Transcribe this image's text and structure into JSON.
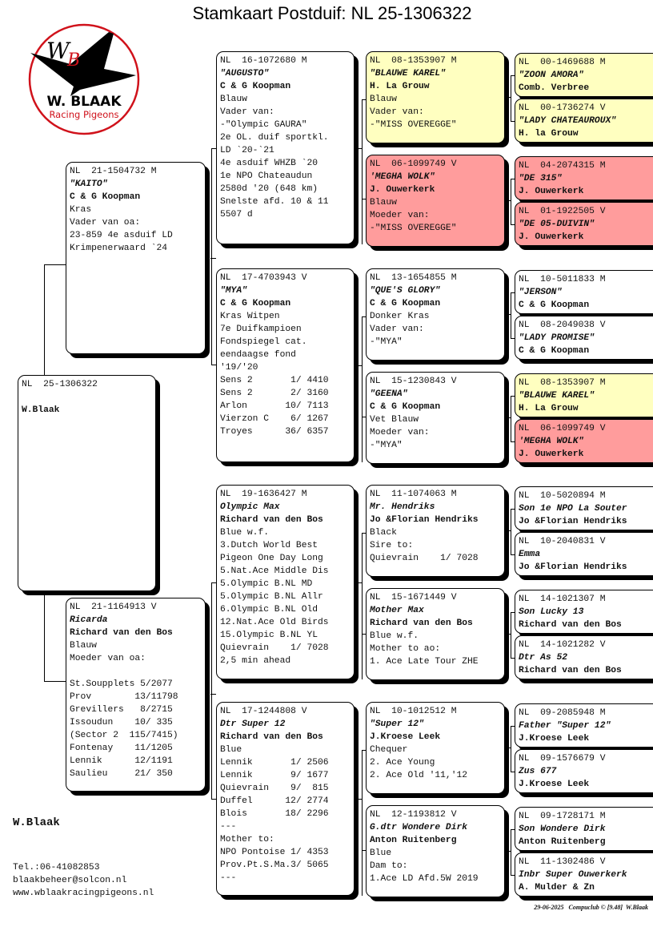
{
  "title": "Stamkaart Postduif: NL  25-1306322",
  "logo": {
    "initials": "WB",
    "name": "W. BLAAK",
    "tagline": "Racing Pigeons"
  },
  "colors": {
    "yellow": "#ffffc0",
    "red": "#ff9c9c"
  },
  "owner": "W.Blaak",
  "contact": {
    "phone": "Tel.:06-41082853",
    "email": "blaakbeheer@solcon.nl",
    "website": "www.wblaakracingpigeons.nl"
  },
  "footer": "29-06-2025   Compuclub © [9.48]  W.Blaak",
  "pigeons": {
    "s": {
      "ring": "NL  25-1306322",
      "name": "",
      "breeder": "W.Blaak",
      "lines": []
    },
    "v": {
      "ring": "NL  21-1504732 M",
      "name": "\"KAITO\"",
      "breeder": "C & G Koopman",
      "lines": [
        "Kras",
        "Vader van oa:",
        "23-859 4e asduif LD",
        "Krimpenerwaard `24"
      ]
    },
    "m": {
      "ring": "NL  21-1164913 V",
      "name": "Ricarda",
      "breeder": "Richard van den Bos",
      "lines": [
        "Blauw",
        "Moeder van oa:",
        "",
        "St.Soupplets 5/2077",
        "Prov        13/11798",
        "Grevillers   8/2715",
        "Issoudun    10/ 335",
        "(Sector 2  115/7415)",
        "Fontenay    11/1205",
        "Lennik      12/1191",
        "Saulieu     21/ 350"
      ]
    },
    "vv": {
      "ring": "NL  16-1072680 M",
      "name": "\"AUGUSTO\"",
      "breeder": "C & G Koopman",
      "lines": [
        "Blauw",
        "Vader van:",
        "-\"Olympic GAURA\"",
        "2e OL. duif sportkl.",
        "LD `20-`21",
        "4e asduif WHZB `20",
        "1e NPO Chateaudun",
        "2580d '20 (648 km)",
        "Snelste afd. 10 & 11",
        "5507 d"
      ]
    },
    "vm": {
      "ring": "NL  17-4703943 V",
      "name": "\"MYA\"",
      "breeder": "C & G Koopman",
      "lines": [
        "Kras Witpen",
        "7e Duifkampioen",
        "Fondspiegel cat.",
        "eendaagse fond",
        "'19/'20",
        "Sens 2       1/ 4410",
        "Sens 2       2/ 3160",
        "Arlon       10/ 7113",
        "Vierzon C    6/ 1267",
        "Troyes      36/ 6357"
      ]
    },
    "mv": {
      "ring": "NL  19-1636427 M",
      "name": "Olympic Max",
      "breeder": "Richard van den Bos",
      "lines": [
        "Blue w.f.",
        "3.Dutch World Best",
        "Pigeon One Day Long",
        "5.Nat.Ace Middle Dis",
        "5.Olympic B.NL MD",
        "5.Olympic B.NL Allr",
        "6.Olympic B.NL Old",
        "12.Nat.Ace Old Birds",
        "15.Olympic B.NL YL",
        "Quievrain    1/ 7028",
        "2,5 min ahead"
      ]
    },
    "mm": {
      "ring": "NL  17-1244808 V",
      "name": "Dtr Super 12",
      "breeder": "Richard van den Bos",
      "lines": [
        "Blue",
        "Lennik       1/ 2506",
        "Lennik       9/ 1677",
        "Quievrain    9/  815",
        "Duffel      12/ 2774",
        "Blois       18/ 2296",
        "---",
        "Mother to:",
        "NPO Pontoise 1/ 4353",
        "Prov.Pt.S.Ma.3/ 5065",
        "---"
      ]
    },
    "vvv": {
      "ring": "NL  08-1353907 M",
      "name": "\"BLAUWE KAREL\"",
      "breeder": "H. La Grouw",
      "lines": [
        "Blauw",
        "Vader van:",
        "-\"MISS OVEREGGE\""
      ],
      "highlight": "yellow"
    },
    "vvm": {
      "ring": "NL  06-1099749 V",
      "name": "'MEGHA WOLK\"",
      "breeder": "J. Ouwerkerk",
      "lines": [
        "Blauw",
        "Moeder van:",
        "-\"MISS OVEREGGE\""
      ],
      "highlight": "red"
    },
    "vmv": {
      "ring": "NL  13-1654855 M",
      "name": "\"QUE'S GLORY\"",
      "breeder": "C & G Koopman",
      "lines": [
        "Donker Kras",
        "Vader van:",
        "-\"MYA\""
      ]
    },
    "vmm": {
      "ring": "NL  15-1230843 V",
      "name": "\"GEENA\"",
      "breeder": "C & G Koopman",
      "lines": [
        "Vet Blauw",
        "Moeder van:",
        "-\"MYA\""
      ]
    },
    "mvv": {
      "ring": "NL  11-1074063 M",
      "name": "Mr. Hendriks",
      "breeder": "Jo &Florian Hendriks",
      "lines": [
        "Black",
        "Sire to:",
        "Quievrain    1/ 7028"
      ]
    },
    "mvm": {
      "ring": "NL  15-1671449 V",
      "name": "Mother Max",
      "breeder": "Richard van den Bos",
      "lines": [
        "Blue w.f.",
        "Mother to ao:",
        "1. Ace Late Tour ZHE"
      ]
    },
    "mmv": {
      "ring": "NL  10-1012512 M",
      "name": "\"Super 12\"",
      "breeder": "J.Kroese Leek",
      "lines": [
        "Chequer",
        "2. Ace Young",
        "2. Ace Old '11,'12"
      ]
    },
    "mmm": {
      "ring": "NL  12-1193812 V",
      "name": "G.dtr Wondere Dirk",
      "breeder": "Anton Ruitenberg",
      "lines": [
        "Blue",
        "Dam to:",
        "1.Ace LD Afd.5W 2019"
      ]
    },
    "vvvv": {
      "ring": "NL  00-1469688 M",
      "name": "\"ZOON AMORA\"",
      "breeder": "Comb. Verbree",
      "lines": [],
      "highlight": "yellow"
    },
    "vvvm": {
      "ring": "NL  00-1736274 V",
      "name": "\"LADY CHATEAUROUX\"",
      "breeder": "H. la Grouw",
      "lines": [],
      "highlight": "yellow"
    },
    "vvmv": {
      "ring": "NL  04-2074315 M",
      "name": "\"DE 315\"",
      "breeder": "J. Ouwerkerk",
      "lines": [],
      "highlight": "red"
    },
    "vvmm": {
      "ring": "NL  01-1922505 V",
      "name": "\"DE 05-DUIVIN\"",
      "breeder": "J. Ouwerkerk",
      "lines": [],
      "highlight": "red"
    },
    "vmvv": {
      "ring": "NL  10-5011833 M",
      "name": "\"JERSON\"",
      "breeder": "C & G Koopman",
      "lines": []
    },
    "vmvm": {
      "ring": "NL  08-2049038 V",
      "name": "\"LADY PROMISE\"",
      "breeder": "C & G Koopman",
      "lines": []
    },
    "vmmv": {
      "ring": "NL  08-1353907 M",
      "name": "\"BLAUWE KAREL\"",
      "breeder": "H. La Grouw",
      "lines": [],
      "highlight": "yellow"
    },
    "vmmm": {
      "ring": "NL  06-1099749 V",
      "name": "'MEGHA WOLK\"",
      "breeder": "J. Ouwerkerk",
      "lines": [],
      "highlight": "red"
    },
    "mvvv": {
      "ring": "NL  10-5020894 M",
      "name": "Son 1e NPO La Souter",
      "breeder": "Jo &Florian Hendriks",
      "lines": []
    },
    "mvvm": {
      "ring": "NL  10-2040831 V",
      "name": "Emma",
      "breeder": "Jo &Florian Hendriks",
      "lines": []
    },
    "mvmv": {
      "ring": "NL  14-1021307 M",
      "name": "Son Lucky 13",
      "breeder": "Richard van den Bos",
      "lines": []
    },
    "mvmm": {
      "ring": "NL  14-1021282 V",
      "name": "Dtr As 52",
      "breeder": "Richard van den Bos",
      "lines": []
    },
    "mmvv": {
      "ring": "NL  09-2085948 M",
      "name": "Father \"Super 12\"",
      "breeder": "J.Kroese Leek",
      "lines": []
    },
    "mmvm": {
      "ring": "NL  09-1576679 V",
      "name": "Zus 677",
      "breeder": "J.Kroese Leek",
      "lines": []
    },
    "mmmv": {
      "ring": "NL  09-1728171 M",
      "name": "Son Wondere Dirk",
      "breeder": "Anton Ruitenberg",
      "lines": []
    },
    "mmmm": {
      "ring": "NL  11-1302486 V",
      "name": "Inbr Super Ouwerkerk",
      "breeder": "A. Mulder & Zn",
      "lines": []
    }
  }
}
